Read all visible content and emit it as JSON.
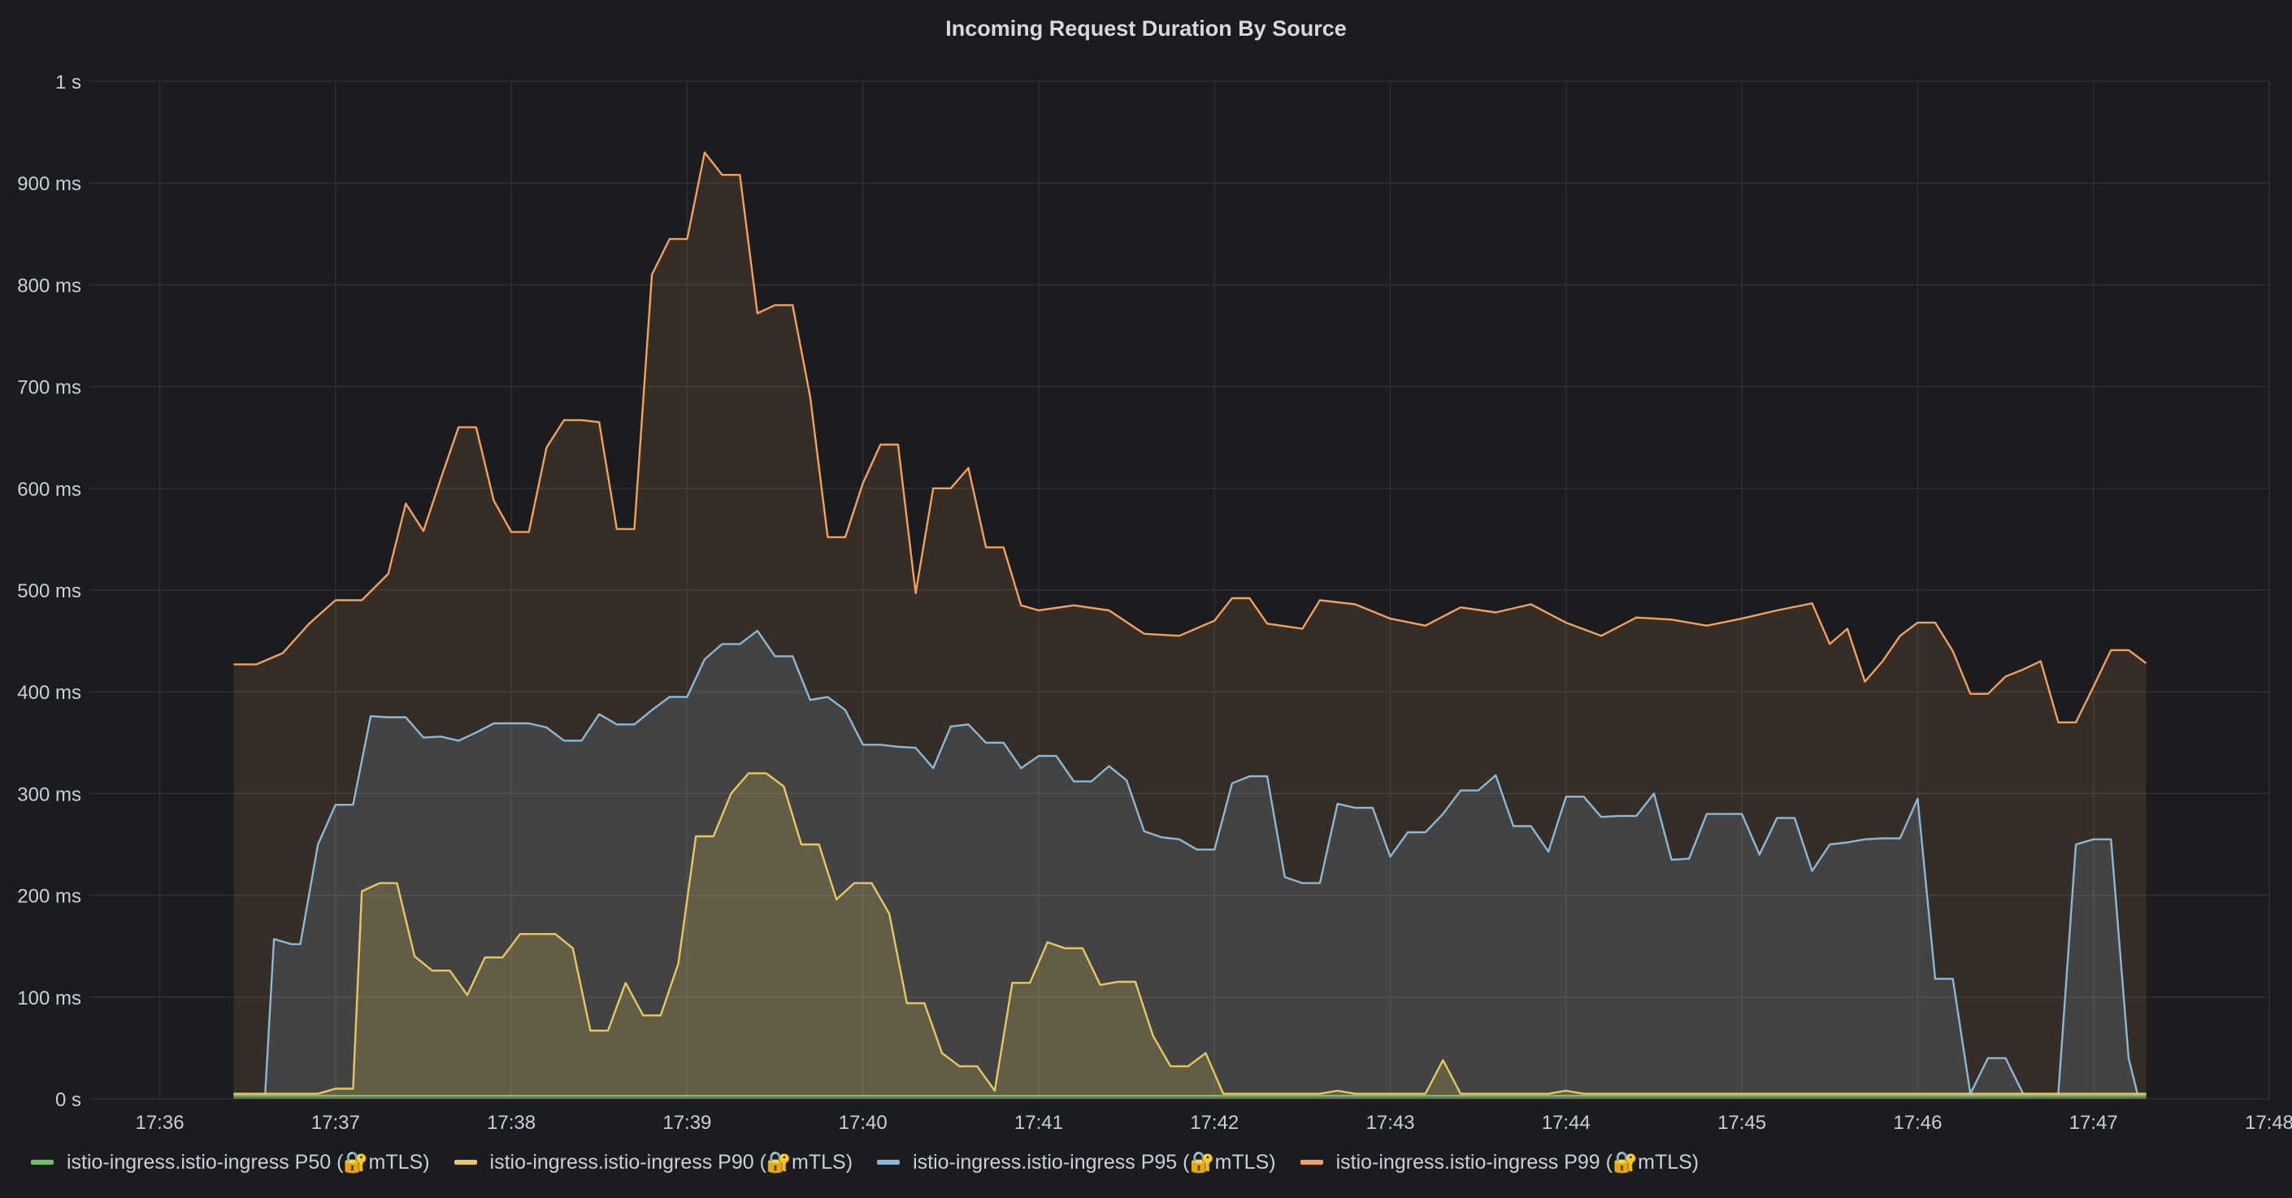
{
  "panel": {
    "title": "Incoming Request Duration By Source"
  },
  "colors": {
    "background": "#1b1c20",
    "grid": "#2d2f33",
    "text": "#c7d0d9"
  },
  "chart_data": {
    "type": "area",
    "title": "Incoming Request Duration By Source",
    "xlabel": "",
    "ylabel": "",
    "x_unit": "minutes",
    "x_range": [
      "17:35.6",
      "17:48.0"
    ],
    "xlim": [
      35.6,
      48.0
    ],
    "ylim": [
      0,
      1000
    ],
    "y_unit": "ms",
    "grid": true,
    "legend": "bottom",
    "x_ticks": [
      36,
      37,
      38,
      39,
      40,
      41,
      42,
      43,
      44,
      45,
      46,
      47,
      48
    ],
    "x_tick_labels": [
      "17:36",
      "17:37",
      "17:38",
      "17:39",
      "17:40",
      "17:41",
      "17:42",
      "17:43",
      "17:44",
      "17:45",
      "17:46",
      "17:47",
      "17:48"
    ],
    "y_ticks": [
      0,
      100,
      200,
      300,
      400,
      500,
      600,
      700,
      800,
      900,
      1000
    ],
    "y_tick_labels": [
      "0 s",
      "100 ms",
      "200 ms",
      "300 ms",
      "400 ms",
      "500 ms",
      "600 ms",
      "700 ms",
      "800 ms",
      "900 ms",
      "1 s"
    ],
    "x_minutes": [
      36.4,
      37.0,
      37.6,
      38.0,
      38.4,
      38.8,
      39.0,
      39.4,
      40.0,
      40.6,
      41.0,
      41.6,
      42.0,
      42.6,
      43.0,
      43.6,
      44.0,
      44.6,
      45.0,
      45.3,
      45.6,
      46.0,
      46.6,
      47.1
    ],
    "series": [
      {
        "name": "istio-ingress.istio-ingress P99 (🔐mTLS)",
        "color": "#f2a05b",
        "points": [
          [
            36.42,
            427
          ],
          [
            36.55,
            427
          ],
          [
            36.7,
            438
          ],
          [
            36.85,
            467
          ],
          [
            37.0,
            490
          ],
          [
            37.15,
            490
          ],
          [
            37.3,
            516
          ],
          [
            37.4,
            585
          ],
          [
            37.5,
            558
          ],
          [
            37.6,
            610
          ],
          [
            37.7,
            660
          ],
          [
            37.8,
            660
          ],
          [
            37.9,
            588
          ],
          [
            38.0,
            557
          ],
          [
            38.1,
            557
          ],
          [
            38.2,
            640
          ],
          [
            38.3,
            667
          ],
          [
            38.4,
            667
          ],
          [
            38.5,
            665
          ],
          [
            38.6,
            560
          ],
          [
            38.7,
            560
          ],
          [
            38.8,
            810
          ],
          [
            38.9,
            845
          ],
          [
            39.0,
            845
          ],
          [
            39.1,
            930
          ],
          [
            39.2,
            908
          ],
          [
            39.3,
            908
          ],
          [
            39.4,
            772
          ],
          [
            39.5,
            780
          ],
          [
            39.6,
            780
          ],
          [
            39.7,
            690
          ],
          [
            39.8,
            552
          ],
          [
            39.9,
            552
          ],
          [
            40.0,
            605
          ],
          [
            40.1,
            643
          ],
          [
            40.2,
            643
          ],
          [
            40.3,
            497
          ],
          [
            40.4,
            600
          ],
          [
            40.5,
            600
          ],
          [
            40.6,
            620
          ],
          [
            40.7,
            542
          ],
          [
            40.8,
            542
          ],
          [
            40.9,
            485
          ],
          [
            41.0,
            480
          ],
          [
            41.2,
            485
          ],
          [
            41.4,
            480
          ],
          [
            41.6,
            457
          ],
          [
            41.8,
            455
          ],
          [
            42.0,
            470
          ],
          [
            42.1,
            492
          ],
          [
            42.2,
            492
          ],
          [
            42.3,
            467
          ],
          [
            42.5,
            462
          ],
          [
            42.6,
            490
          ],
          [
            42.8,
            486
          ],
          [
            43.0,
            472
          ],
          [
            43.2,
            465
          ],
          [
            43.4,
            483
          ],
          [
            43.6,
            478
          ],
          [
            43.8,
            486
          ],
          [
            44.0,
            468
          ],
          [
            44.2,
            455
          ],
          [
            44.4,
            473
          ],
          [
            44.6,
            471
          ],
          [
            44.8,
            465
          ],
          [
            45.0,
            472
          ],
          [
            45.2,
            480
          ],
          [
            45.4,
            487
          ],
          [
            45.5,
            447
          ],
          [
            45.6,
            462
          ],
          [
            45.7,
            410
          ],
          [
            45.8,
            430
          ],
          [
            45.9,
            455
          ],
          [
            46.0,
            468
          ],
          [
            46.1,
            468
          ],
          [
            46.2,
            440
          ],
          [
            46.3,
            398
          ],
          [
            46.4,
            398
          ],
          [
            46.5,
            415
          ],
          [
            46.6,
            422
          ],
          [
            46.7,
            430
          ],
          [
            46.8,
            370
          ],
          [
            46.9,
            370
          ],
          [
            47.0,
            405
          ],
          [
            47.1,
            441
          ],
          [
            47.2,
            441
          ],
          [
            47.3,
            428
          ]
        ]
      },
      {
        "name": "istio-ingress.istio-ingress P95 (🔐mTLS)",
        "color": "#8ab8d8",
        "points": [
          [
            36.42,
            5
          ],
          [
            36.6,
            5
          ],
          [
            36.65,
            157
          ],
          [
            36.75,
            152
          ],
          [
            36.8,
            152
          ],
          [
            36.9,
            250
          ],
          [
            37.0,
            289
          ],
          [
            37.1,
            289
          ],
          [
            37.2,
            376
          ],
          [
            37.3,
            375
          ],
          [
            37.4,
            375
          ],
          [
            37.5,
            355
          ],
          [
            37.6,
            356
          ],
          [
            37.7,
            352
          ],
          [
            37.8,
            360
          ],
          [
            37.9,
            369
          ],
          [
            38.0,
            369
          ],
          [
            38.1,
            369
          ],
          [
            38.2,
            365
          ],
          [
            38.3,
            352
          ],
          [
            38.4,
            352
          ],
          [
            38.5,
            378
          ],
          [
            38.6,
            368
          ],
          [
            38.7,
            368
          ],
          [
            38.8,
            382
          ],
          [
            38.9,
            395
          ],
          [
            39.0,
            395
          ],
          [
            39.1,
            432
          ],
          [
            39.2,
            447
          ],
          [
            39.3,
            447
          ],
          [
            39.4,
            460
          ],
          [
            39.5,
            435
          ],
          [
            39.6,
            435
          ],
          [
            39.7,
            392
          ],
          [
            39.8,
            395
          ],
          [
            39.9,
            382
          ],
          [
            40.0,
            348
          ],
          [
            40.1,
            348
          ],
          [
            40.2,
            346
          ],
          [
            40.3,
            345
          ],
          [
            40.4,
            325
          ],
          [
            40.5,
            366
          ],
          [
            40.6,
            368
          ],
          [
            40.7,
            350
          ],
          [
            40.8,
            350
          ],
          [
            40.9,
            325
          ],
          [
            41.0,
            337
          ],
          [
            41.1,
            337
          ],
          [
            41.2,
            312
          ],
          [
            41.3,
            312
          ],
          [
            41.4,
            327
          ],
          [
            41.5,
            313
          ],
          [
            41.6,
            263
          ],
          [
            41.7,
            257
          ],
          [
            41.8,
            255
          ],
          [
            41.9,
            245
          ],
          [
            42.0,
            245
          ],
          [
            42.1,
            310
          ],
          [
            42.2,
            317
          ],
          [
            42.3,
            317
          ],
          [
            42.4,
            218
          ],
          [
            42.5,
            212
          ],
          [
            42.6,
            212
          ],
          [
            42.7,
            290
          ],
          [
            42.8,
            286
          ],
          [
            42.9,
            286
          ],
          [
            43.0,
            238
          ],
          [
            43.1,
            262
          ],
          [
            43.2,
            262
          ],
          [
            43.3,
            280
          ],
          [
            43.4,
            303
          ],
          [
            43.5,
            303
          ],
          [
            43.6,
            318
          ],
          [
            43.7,
            268
          ],
          [
            43.8,
            268
          ],
          [
            43.9,
            243
          ],
          [
            44.0,
            297
          ],
          [
            44.1,
            297
          ],
          [
            44.2,
            277
          ],
          [
            44.3,
            278
          ],
          [
            44.4,
            278
          ],
          [
            44.5,
            300
          ],
          [
            44.6,
            235
          ],
          [
            44.7,
            236
          ],
          [
            44.8,
            280
          ],
          [
            44.9,
            280
          ],
          [
            45.0,
            280
          ],
          [
            45.1,
            240
          ],
          [
            45.2,
            276
          ],
          [
            45.3,
            276
          ],
          [
            45.4,
            224
          ],
          [
            45.5,
            250
          ],
          [
            45.6,
            252
          ],
          [
            45.7,
            255
          ],
          [
            45.8,
            256
          ],
          [
            45.9,
            256
          ],
          [
            46.0,
            295
          ],
          [
            46.1,
            118
          ],
          [
            46.2,
            118
          ],
          [
            46.3,
            5
          ],
          [
            46.4,
            40
          ],
          [
            46.5,
            40
          ],
          [
            46.6,
            5
          ],
          [
            46.7,
            5
          ],
          [
            46.8,
            5
          ],
          [
            46.9,
            250
          ],
          [
            47.0,
            255
          ],
          [
            47.1,
            255
          ],
          [
            47.2,
            40
          ],
          [
            47.25,
            5
          ],
          [
            47.3,
            5
          ]
        ]
      },
      {
        "name": "istio-ingress.istio-ingress P90 (🔐mTLS)",
        "color": "#e8c760",
        "points": [
          [
            36.42,
            5
          ],
          [
            36.9,
            5
          ],
          [
            37.0,
            10
          ],
          [
            37.1,
            10
          ],
          [
            37.15,
            204
          ],
          [
            37.25,
            212
          ],
          [
            37.35,
            212
          ],
          [
            37.45,
            140
          ],
          [
            37.55,
            126
          ],
          [
            37.65,
            126
          ],
          [
            37.75,
            102
          ],
          [
            37.85,
            139
          ],
          [
            37.95,
            139
          ],
          [
            38.05,
            162
          ],
          [
            38.15,
            162
          ],
          [
            38.25,
            162
          ],
          [
            38.35,
            148
          ],
          [
            38.45,
            67
          ],
          [
            38.55,
            67
          ],
          [
            38.65,
            114
          ],
          [
            38.75,
            82
          ],
          [
            38.85,
            82
          ],
          [
            38.95,
            133
          ],
          [
            39.05,
            258
          ],
          [
            39.15,
            258
          ],
          [
            39.25,
            300
          ],
          [
            39.35,
            320
          ],
          [
            39.45,
            320
          ],
          [
            39.55,
            307
          ],
          [
            39.65,
            250
          ],
          [
            39.75,
            250
          ],
          [
            39.85,
            196
          ],
          [
            39.95,
            212
          ],
          [
            40.05,
            212
          ],
          [
            40.15,
            182
          ],
          [
            40.25,
            94
          ],
          [
            40.35,
            94
          ],
          [
            40.45,
            45
          ],
          [
            40.55,
            32
          ],
          [
            40.65,
            32
          ],
          [
            40.75,
            8
          ],
          [
            40.85,
            114
          ],
          [
            40.95,
            114
          ],
          [
            41.05,
            154
          ],
          [
            41.15,
            148
          ],
          [
            41.25,
            148
          ],
          [
            41.35,
            112
          ],
          [
            41.45,
            115
          ],
          [
            41.55,
            115
          ],
          [
            41.65,
            62
          ],
          [
            41.75,
            32
          ],
          [
            41.85,
            32
          ],
          [
            41.95,
            45
          ],
          [
            42.05,
            5
          ],
          [
            42.6,
            5
          ],
          [
            42.7,
            8
          ],
          [
            42.8,
            5
          ],
          [
            43.2,
            5
          ],
          [
            43.3,
            38
          ],
          [
            43.4,
            5
          ],
          [
            43.9,
            5
          ],
          [
            44.0,
            8
          ],
          [
            44.1,
            5
          ],
          [
            47.3,
            5
          ]
        ]
      },
      {
        "name": "istio-ingress.istio-ingress P50 (🔐mTLS)",
        "color": "#73bf69",
        "points": [
          [
            36.42,
            3
          ],
          [
            47.3,
            3
          ]
        ]
      }
    ]
  }
}
